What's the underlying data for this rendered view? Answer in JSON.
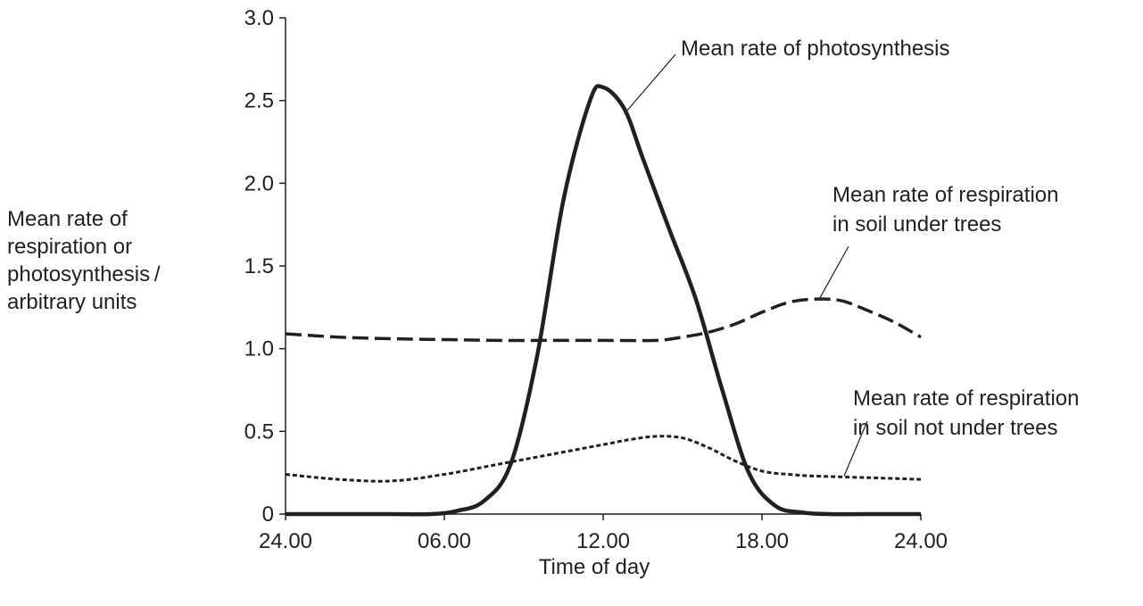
{
  "chart_data": {
    "type": "line",
    "xlabel": "Time of day",
    "ylabel_lines": [
      "Mean rate of",
      "respiration or",
      "photosynthesis /",
      "arbitrary units"
    ],
    "x_tick_labels": [
      "24.00",
      "06.00",
      "12.00",
      "18.00",
      "24.00"
    ],
    "x_ticks_hours": [
      0,
      6,
      12,
      18,
      24
    ],
    "y_tick_labels": [
      "0",
      "0.5",
      "1.0",
      "1.5",
      "2.0",
      "2.5",
      "3.0"
    ],
    "y_ticks": [
      0,
      0.5,
      1.0,
      1.5,
      2.0,
      2.5,
      3.0
    ],
    "xlim_hours": [
      0,
      24
    ],
    "ylim": [
      0,
      3.0
    ],
    "grid": false,
    "series": [
      {
        "name": "Mean rate of photosynthesis",
        "style": "solid",
        "color": "#231f20",
        "x_hours": [
          0,
          2,
          4,
          5.5,
          6.5,
          7.5,
          8.5,
          9.5,
          10.5,
          11.5,
          12,
          12.8,
          13.5,
          14.5,
          15.5,
          16.5,
          17.5,
          18.5,
          19.5,
          20.5,
          22,
          24
        ],
        "values": [
          0,
          0,
          0,
          0,
          0.02,
          0.08,
          0.3,
          0.95,
          1.9,
          2.5,
          2.58,
          2.45,
          2.15,
          1.72,
          1.3,
          0.75,
          0.25,
          0.05,
          0.01,
          0,
          0,
          0
        ]
      },
      {
        "name": "Mean rate of respiration in soil under trees",
        "style": "dashed",
        "color": "#231f20",
        "x_hours": [
          0,
          2,
          4,
          6,
          8,
          10,
          12,
          14,
          15,
          16,
          17,
          18,
          19,
          20,
          21,
          22,
          23,
          24
        ],
        "values": [
          1.09,
          1.07,
          1.06,
          1.055,
          1.05,
          1.05,
          1.05,
          1.05,
          1.07,
          1.1,
          1.15,
          1.22,
          1.28,
          1.3,
          1.29,
          1.23,
          1.16,
          1.07
        ]
      },
      {
        "name": "Mean rate of respiration in soil not under trees",
        "style": "dotted",
        "color": "#231f20",
        "x_hours": [
          0,
          2,
          4,
          6,
          8,
          10,
          12,
          13,
          14,
          15,
          16,
          17,
          18,
          19,
          20,
          22,
          24
        ],
        "values": [
          0.24,
          0.21,
          0.2,
          0.24,
          0.3,
          0.36,
          0.42,
          0.45,
          0.47,
          0.46,
          0.4,
          0.32,
          0.26,
          0.24,
          0.23,
          0.22,
          0.21
        ]
      }
    ],
    "annotations": [
      {
        "lines": [
          "Mean rate of photosynthesis"
        ],
        "series_index": 0,
        "point_hours": 12.8,
        "point_value": 2.42
      },
      {
        "lines": [
          "Mean rate of respiration",
          "in soil under trees"
        ],
        "series_index": 1,
        "point_hours": 20.2,
        "point_value": 1.31
      },
      {
        "lines": [
          "Mean rate of respiration",
          "in soil not under trees"
        ],
        "series_index": 2,
        "point_hours": 21.1,
        "point_value": 0.23
      }
    ]
  }
}
